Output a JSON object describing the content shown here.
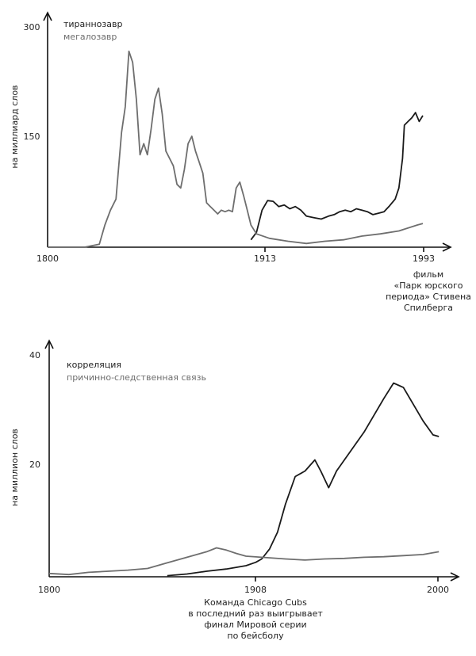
{
  "chart_data": [
    {
      "type": "line",
      "ylabel": "на миллиард слов",
      "xlim": [
        1800,
        2018
      ],
      "ylim": [
        0,
        300
      ],
      "yticks": [
        300,
        150
      ],
      "xticks": [
        "1800",
        "1913",
        "1993"
      ],
      "colors": {
        "тираннозавр": "#1a1a1a",
        "мегалозавр": "#6e6e6e"
      },
      "series": [
        {
          "name": "тираннозавр",
          "points": [
            [
              1910,
              10
            ],
            [
              1913,
              20
            ],
            [
              1916,
              50
            ],
            [
              1919,
              63
            ],
            [
              1922,
              62
            ],
            [
              1925,
              55
            ],
            [
              1928,
              57
            ],
            [
              1931,
              52
            ],
            [
              1934,
              55
            ],
            [
              1937,
              50
            ],
            [
              1940,
              42
            ],
            [
              1944,
              40
            ],
            [
              1948,
              38
            ],
            [
              1952,
              42
            ],
            [
              1955,
              44
            ],
            [
              1958,
              48
            ],
            [
              1961,
              50
            ],
            [
              1964,
              48
            ],
            [
              1967,
              52
            ],
            [
              1970,
              50
            ],
            [
              1973,
              48
            ],
            [
              1976,
              44
            ],
            [
              1979,
              46
            ],
            [
              1982,
              48
            ],
            [
              1985,
              56
            ],
            [
              1988,
              65
            ],
            [
              1990,
              80
            ],
            [
              1992,
              120
            ],
            [
              1993,
              165
            ],
            [
              1995,
              170
            ],
            [
              1997,
              175
            ],
            [
              1999,
              182
            ],
            [
              2001,
              170
            ],
            [
              2003,
              178
            ]
          ]
        },
        {
          "name": "мегалозавр",
          "points": [
            [
              1800,
              0
            ],
            [
              1820,
              0
            ],
            [
              1828,
              4
            ],
            [
              1831,
              30
            ],
            [
              1834,
              50
            ],
            [
              1837,
              65
            ],
            [
              1840,
              155
            ],
            [
              1842,
              190
            ],
            [
              1844,
              265
            ],
            [
              1846,
              250
            ],
            [
              1848,
              200
            ],
            [
              1850,
              125
            ],
            [
              1852,
              140
            ],
            [
              1854,
              125
            ],
            [
              1856,
              160
            ],
            [
              1858,
              200
            ],
            [
              1860,
              215
            ],
            [
              1862,
              180
            ],
            [
              1864,
              130
            ],
            [
              1866,
              120
            ],
            [
              1868,
              110
            ],
            [
              1870,
              85
            ],
            [
              1872,
              80
            ],
            [
              1874,
              105
            ],
            [
              1876,
              140
            ],
            [
              1878,
              150
            ],
            [
              1880,
              130
            ],
            [
              1882,
              115
            ],
            [
              1884,
              100
            ],
            [
              1886,
              60
            ],
            [
              1888,
              55
            ],
            [
              1890,
              50
            ],
            [
              1892,
              45
            ],
            [
              1894,
              50
            ],
            [
              1896,
              48
            ],
            [
              1898,
              50
            ],
            [
              1900,
              48
            ],
            [
              1902,
              80
            ],
            [
              1904,
              88
            ],
            [
              1906,
              70
            ],
            [
              1908,
              50
            ],
            [
              1910,
              30
            ],
            [
              1913,
              18
            ],
            [
              1920,
              12
            ],
            [
              1930,
              8
            ],
            [
              1940,
              5
            ],
            [
              1950,
              8
            ],
            [
              1960,
              10
            ],
            [
              1970,
              15
            ],
            [
              1980,
              18
            ],
            [
              1990,
              22
            ],
            [
              2000,
              30
            ],
            [
              2003,
              32
            ]
          ]
        }
      ],
      "annotations": {
        "event": "фильм «Парк юрского периода» Стивена Спилберга"
      }
    },
    {
      "type": "line",
      "ylabel": "на миллион слов",
      "xlim": [
        1800,
        2008
      ],
      "ylim": [
        0,
        40
      ],
      "yticks": [
        40,
        20
      ],
      "xticks": [
        "1800",
        "1908",
        "2000"
      ],
      "colors": {
        "корреляция": "#1a1a1a",
        "причинно-следственная связь": "#6e6e6e"
      },
      "series": [
        {
          "name": "корреляция",
          "points": [
            [
              1860,
              0.2
            ],
            [
              1870,
              0.5
            ],
            [
              1880,
              1.0
            ],
            [
              1890,
              1.4
            ],
            [
              1900,
              2.0
            ],
            [
              1905,
              2.6
            ],
            [
              1908,
              3.2
            ],
            [
              1912,
              5.0
            ],
            [
              1916,
              8.0
            ],
            [
              1920,
              13.0
            ],
            [
              1925,
              18.0
            ],
            [
              1930,
              19.0
            ],
            [
              1935,
              21.0
            ],
            [
              1938,
              19.0
            ],
            [
              1942,
              16.0
            ],
            [
              1946,
              19.0
            ],
            [
              1950,
              21.0
            ],
            [
              1956,
              24.0
            ],
            [
              1960,
              26.0
            ],
            [
              1965,
              29.0
            ],
            [
              1970,
              32.0
            ],
            [
              1975,
              34.8
            ],
            [
              1980,
              34.0
            ],
            [
              1985,
              31.0
            ],
            [
              1990,
              28.0
            ],
            [
              1995,
              25.5
            ],
            [
              1998,
              25.2
            ]
          ]
        },
        {
          "name": "причинно-следственная связь",
          "points": [
            [
              1800,
              0.6
            ],
            [
              1810,
              0.4
            ],
            [
              1820,
              0.8
            ],
            [
              1830,
              1.0
            ],
            [
              1840,
              1.2
            ],
            [
              1850,
              1.5
            ],
            [
              1860,
              2.5
            ],
            [
              1870,
              3.5
            ],
            [
              1880,
              4.5
            ],
            [
              1885,
              5.2
            ],
            [
              1890,
              4.8
            ],
            [
              1895,
              4.2
            ],
            [
              1900,
              3.7
            ],
            [
              1908,
              3.5
            ],
            [
              1920,
              3.2
            ],
            [
              1930,
              3.0
            ],
            [
              1940,
              3.2
            ],
            [
              1950,
              3.3
            ],
            [
              1960,
              3.5
            ],
            [
              1970,
              3.6
            ],
            [
              1980,
              3.8
            ],
            [
              1990,
              4.0
            ],
            [
              1998,
              4.5
            ]
          ]
        }
      ],
      "annotations": {
        "event": "Команда Chicago Cubs в последний раз выигрывает финал Мировой серии по бейсболу"
      }
    }
  ]
}
